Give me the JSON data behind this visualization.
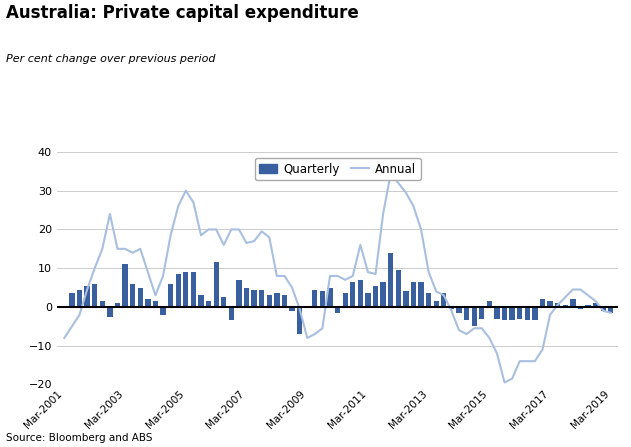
{
  "title": "Australia: Private capital expenditure",
  "subtitle": "Per cent change over previous period",
  "source": "Source: Bloomberg and ABS",
  "bar_color": "#3a5f9f",
  "line_color": "#a8bfdf",
  "ylim": [
    -20,
    40
  ],
  "yticks": [
    -20,
    -10,
    0,
    10,
    20,
    30,
    40
  ],
  "legend_labels": [
    "Quarterly",
    "Annual"
  ],
  "quarterly": [
    0.2,
    3.5,
    4.5,
    5.5,
    6.0,
    1.5,
    -2.5,
    1.0,
    11.0,
    6.0,
    5.0,
    2.0,
    1.5,
    -2.0,
    6.0,
    8.5,
    9.0,
    9.0,
    3.0,
    1.5,
    11.5,
    2.5,
    -3.5,
    7.0,
    5.0,
    4.5,
    4.5,
    3.0,
    3.5,
    3.0,
    -1.0,
    -7.0,
    0.0,
    4.5,
    4.0,
    5.0,
    -1.5,
    3.5,
    6.5,
    7.0,
    3.5,
    5.5,
    6.5,
    14.0,
    9.5,
    4.0,
    6.5,
    6.5,
    3.5,
    1.5,
    3.5,
    -0.5,
    -1.5,
    -3.5,
    -5.0,
    -3.0,
    1.5,
    -3.0,
    -3.5,
    -3.5,
    -3.0,
    -3.5,
    -3.5,
    2.0,
    1.5,
    1.0,
    0.5,
    2.0,
    -0.5,
    0.5,
    1.0,
    -1.0,
    -1.5
  ],
  "annual": [
    -8.0,
    -5.0,
    -2.0,
    4.5,
    10.0,
    15.0,
    24.0,
    15.0,
    15.0,
    14.0,
    15.0,
    9.0,
    3.0,
    8.0,
    18.5,
    26.0,
    30.0,
    27.0,
    18.5,
    20.0,
    20.0,
    16.0,
    20.0,
    20.0,
    16.5,
    17.0,
    19.5,
    18.0,
    8.0,
    8.0,
    5.0,
    -0.5,
    -8.0,
    -7.0,
    -5.5,
    8.0,
    8.0,
    7.0,
    8.0,
    16.0,
    9.0,
    8.5,
    24.0,
    34.5,
    32.0,
    29.5,
    26.0,
    20.0,
    9.0,
    4.0,
    3.0,
    -1.0,
    -6.0,
    -7.0,
    -5.5,
    -5.5,
    -8.0,
    -12.0,
    -19.5,
    -18.5,
    -14.0,
    -14.0,
    -14.0,
    -11.0,
    -2.0,
    0.5,
    2.5,
    4.5,
    4.5,
    3.0,
    1.5,
    -1.0,
    -1.5
  ]
}
